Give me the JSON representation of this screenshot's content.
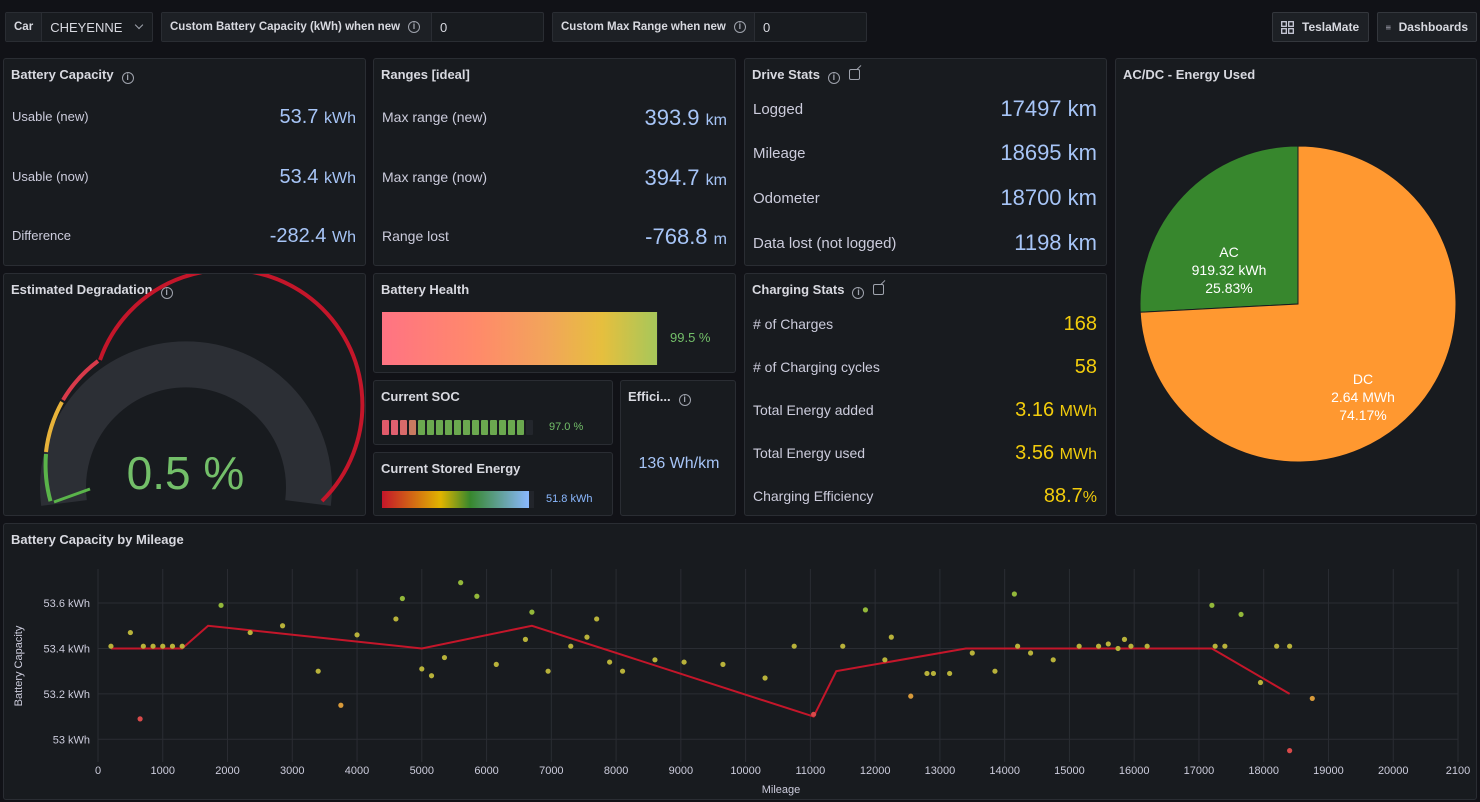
{
  "topbar": {
    "car_label": "Car",
    "car_value": "CHEYENNE",
    "battery_cap_label": "Custom Battery Capacity (kWh) when new",
    "battery_cap_value": "0",
    "max_range_label": "Custom Max Range when new",
    "max_range_value": "0",
    "teslamate_button": "TeslaMate",
    "dashboards_button": "Dashboards"
  },
  "battery_capacity": {
    "title": "Battery Capacity",
    "rows": [
      {
        "label": "Usable (new)",
        "value": "53.7",
        "unit": "kWh"
      },
      {
        "label": "Usable (now)",
        "value": "53.4",
        "unit": "kWh"
      },
      {
        "label": "Difference",
        "value": "-282.4",
        "unit": "Wh"
      }
    ]
  },
  "ranges": {
    "title": "Ranges [ideal]",
    "rows": [
      {
        "label": "Max range (new)",
        "value": "393.9",
        "unit": "km"
      },
      {
        "label": "Max range (now)",
        "value": "394.7",
        "unit": "km"
      },
      {
        "label": "Range lost",
        "value": "-768.8",
        "unit": "m"
      }
    ]
  },
  "drive_stats": {
    "title": "Drive Stats",
    "rows": [
      {
        "label": "Logged",
        "value": "17497",
        "unit": "km"
      },
      {
        "label": "Mileage",
        "value": "18695",
        "unit": "km"
      },
      {
        "label": "Odometer",
        "value": "18700",
        "unit": "km"
      },
      {
        "label": "Data lost (not logged)",
        "value": "1198",
        "unit": "km"
      }
    ]
  },
  "acdc": {
    "title": "AC/DC - Energy Used",
    "slices": [
      {
        "name": "AC",
        "value": "919.32 kWh",
        "percent": "25.83%",
        "fraction": 0.2583,
        "color": "#37872d"
      },
      {
        "name": "DC",
        "value": "2.64 MWh",
        "percent": "74.17%",
        "fraction": 0.7417,
        "color": "#ff9830"
      }
    ]
  },
  "degradation": {
    "title": "Estimated Degradation",
    "value": "0.5 %",
    "fraction": 0.005
  },
  "battery_health": {
    "title": "Battery Health",
    "value": "99.5 %",
    "fraction": 0.995
  },
  "current_soc": {
    "title": "Current SOC",
    "value": "97.0 %",
    "fraction": 0.97
  },
  "efficiency": {
    "title": "Effici...",
    "value": "136 Wh/km"
  },
  "current_stored_energy": {
    "title": "Current Stored Energy",
    "value": "51.8 kWh",
    "fraction": 0.97
  },
  "charging_stats": {
    "title": "Charging Stats",
    "rows": [
      {
        "label": "# of Charges",
        "value": "168",
        "unit": ""
      },
      {
        "label": "# of Charging cycles",
        "value": "58",
        "unit": ""
      },
      {
        "label": "Total Energy added",
        "value": "3.16",
        "unit": "MWh"
      },
      {
        "label": "Total Energy used",
        "value": "3.56",
        "unit": "MWh"
      },
      {
        "label": "Charging Efficiency",
        "value": "88.7",
        "unit": "%"
      }
    ]
  },
  "chart_data": {
    "type": "scatter",
    "title": "Battery Capacity by Mileage",
    "xlabel": "Mileage",
    "ylabel": "Battery Capacity",
    "xlim": [
      0,
      21000
    ],
    "ylim": [
      52.9,
      53.75
    ],
    "x_ticks": [
      "0",
      "1000",
      "2000",
      "3000",
      "4000",
      "5000",
      "6000",
      "7000",
      "8000",
      "9000",
      "10000",
      "11000",
      "12000",
      "13000",
      "14000",
      "15000",
      "16000",
      "17000",
      "18000",
      "19000",
      "20000",
      "2100"
    ],
    "y_ticks": [
      {
        "v": 53.0,
        "label": "53 kWh"
      },
      {
        "v": 53.2,
        "label": "53.2 kWh"
      },
      {
        "v": 53.4,
        "label": "53.4 kWh"
      },
      {
        "v": 53.6,
        "label": "53.6 kWh"
      }
    ],
    "grid": true,
    "line": [
      [
        200,
        53.4
      ],
      [
        1300,
        53.4
      ],
      [
        1700,
        53.5
      ],
      [
        5000,
        53.4
      ],
      [
        6700,
        53.5
      ],
      [
        11050,
        53.1
      ],
      [
        11400,
        53.3
      ],
      [
        13400,
        53.4
      ],
      [
        17200,
        53.4
      ],
      [
        18400,
        53.2
      ]
    ],
    "points": [
      [
        200,
        53.41
      ],
      [
        500,
        53.47
      ],
      [
        650,
        53.09
      ],
      [
        700,
        53.41
      ],
      [
        850,
        53.41
      ],
      [
        1000,
        53.41
      ],
      [
        1150,
        53.41
      ],
      [
        1300,
        53.41
      ],
      [
        1900,
        53.59
      ],
      [
        2350,
        53.47
      ],
      [
        2850,
        53.5
      ],
      [
        3400,
        53.3
      ],
      [
        3750,
        53.15
      ],
      [
        4000,
        53.46
      ],
      [
        4600,
        53.53
      ],
      [
        4700,
        53.62
      ],
      [
        5000,
        53.31
      ],
      [
        5150,
        53.28
      ],
      [
        5350,
        53.36
      ],
      [
        5600,
        53.69
      ],
      [
        5850,
        53.63
      ],
      [
        6150,
        53.33
      ],
      [
        6600,
        53.44
      ],
      [
        6700,
        53.56
      ],
      [
        6950,
        53.3
      ],
      [
        7300,
        53.41
      ],
      [
        7550,
        53.45
      ],
      [
        7700,
        53.53
      ],
      [
        7900,
        53.34
      ],
      [
        8100,
        53.3
      ],
      [
        8600,
        53.35
      ],
      [
        9050,
        53.34
      ],
      [
        9650,
        53.33
      ],
      [
        10300,
        53.27
      ],
      [
        10750,
        53.41
      ],
      [
        11050,
        53.11
      ],
      [
        11500,
        53.41
      ],
      [
        11850,
        53.57
      ],
      [
        12150,
        53.35
      ],
      [
        12250,
        53.45
      ],
      [
        12550,
        53.19
      ],
      [
        12800,
        53.29
      ],
      [
        12900,
        53.29
      ],
      [
        13150,
        53.29
      ],
      [
        13500,
        53.38
      ],
      [
        13850,
        53.3
      ],
      [
        14150,
        53.64
      ],
      [
        14200,
        53.41
      ],
      [
        14400,
        53.38
      ],
      [
        14750,
        53.35
      ],
      [
        15150,
        53.41
      ],
      [
        15450,
        53.41
      ],
      [
        15600,
        53.42
      ],
      [
        15750,
        53.4
      ],
      [
        15850,
        53.44
      ],
      [
        15950,
        53.41
      ],
      [
        16200,
        53.41
      ],
      [
        17200,
        53.59
      ],
      [
        17250,
        53.41
      ],
      [
        17400,
        53.41
      ],
      [
        17650,
        53.55
      ],
      [
        17950,
        53.25
      ],
      [
        18200,
        53.41
      ],
      [
        18400,
        53.41
      ],
      [
        18400,
        52.95
      ],
      [
        18750,
        53.18
      ]
    ]
  }
}
